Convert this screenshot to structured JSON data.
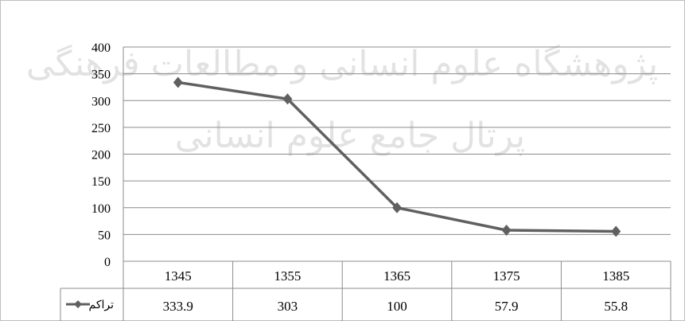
{
  "chart_data": {
    "type": "line",
    "categories": [
      "1345",
      "1355",
      "1365",
      "1375",
      "1385"
    ],
    "series": [
      {
        "name": "تراکم",
        "values": [
          333.9,
          303,
          100,
          57.9,
          55.8
        ],
        "color": "#606060"
      }
    ],
    "table_values": [
      "333.9",
      "303",
      "100",
      "57.9",
      "55.8"
    ],
    "y_ticks": [
      "0",
      "50",
      "100",
      "150",
      "200",
      "250",
      "300",
      "350",
      "400"
    ],
    "ylim": [
      0,
      400
    ],
    "grid": true,
    "legend": "data-table-left"
  },
  "watermark": {
    "line1": "پژوهشگاه علوم انسانی و مطالعات فرهنگی",
    "line2": "پرتال جامع علوم انسانی"
  }
}
